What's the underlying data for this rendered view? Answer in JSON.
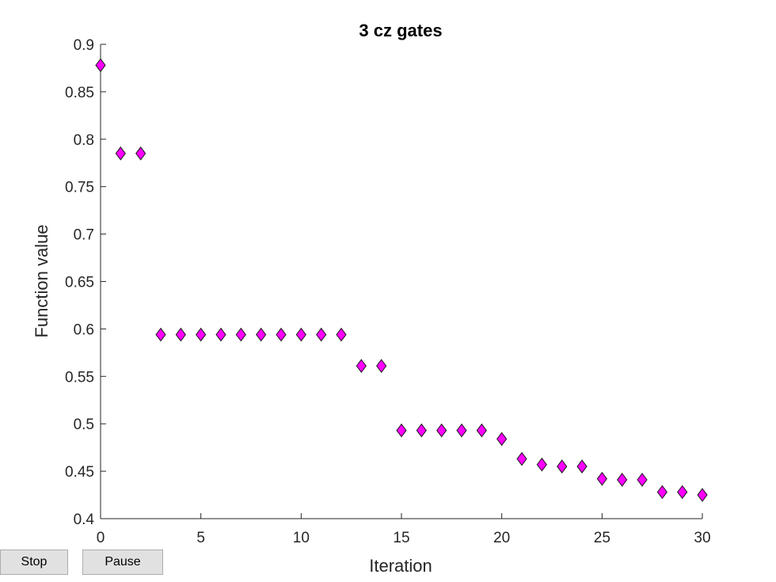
{
  "chart_data": {
    "type": "scatter",
    "title": "3 cz gates",
    "xlabel": "Iteration",
    "ylabel": "Function value",
    "xlim": [
      0,
      30
    ],
    "ylim": [
      0.4,
      0.9
    ],
    "xticks": [
      0,
      5,
      10,
      15,
      20,
      25,
      30
    ],
    "yticks": [
      0.4,
      0.45,
      0.5,
      0.55,
      0.6,
      0.65,
      0.7,
      0.75,
      0.8,
      0.85,
      0.9
    ],
    "xtick_labels": [
      "0",
      "5",
      "10",
      "15",
      "20",
      "25",
      "30"
    ],
    "ytick_labels": [
      "0.4",
      "0.45",
      "0.5",
      "0.55",
      "0.6",
      "0.65",
      "0.7",
      "0.75",
      "0.8",
      "0.85",
      "0.9"
    ],
    "marker": "diamond",
    "marker_color": "#ff00ff",
    "x": [
      0,
      1,
      2,
      3,
      4,
      5,
      6,
      7,
      8,
      9,
      10,
      11,
      12,
      13,
      14,
      15,
      16,
      17,
      18,
      19,
      20,
      21,
      22,
      23,
      24,
      25,
      26,
      27,
      28,
      29,
      30
    ],
    "y": [
      0.878,
      0.785,
      0.785,
      0.594,
      0.594,
      0.594,
      0.594,
      0.594,
      0.594,
      0.594,
      0.594,
      0.594,
      0.594,
      0.561,
      0.561,
      0.493,
      0.493,
      0.493,
      0.493,
      0.493,
      0.484,
      0.463,
      0.457,
      0.455,
      0.455,
      0.442,
      0.441,
      0.441,
      0.428,
      0.428,
      0.425
    ]
  },
  "controls": {
    "stop_label": "Stop",
    "pause_label": "Pause"
  }
}
